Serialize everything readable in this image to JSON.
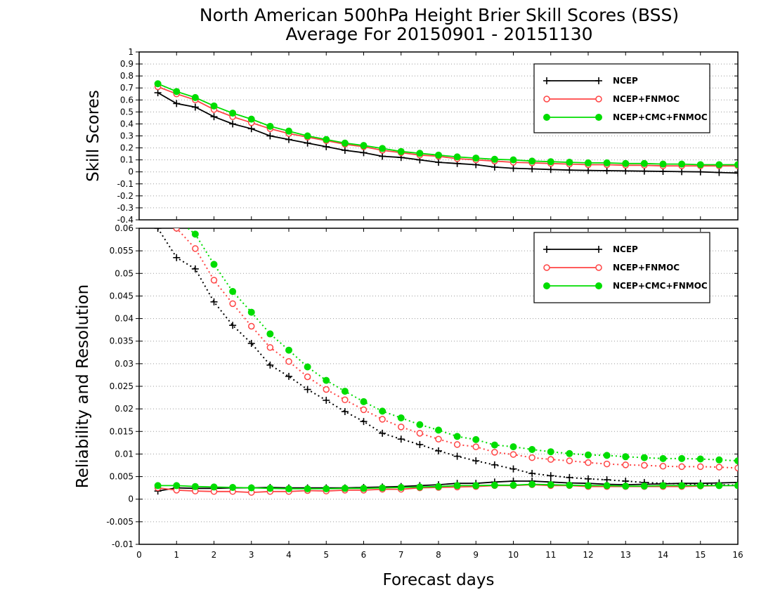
{
  "figure": {
    "title_line1": "North American 500hPa Height Brier Skill Scores (BSS)",
    "title_line2": "Average For 20150901 - 20151130",
    "xlabel": "Forecast days"
  },
  "chart_data": [
    {
      "type": "line",
      "ylabel": "Skill Scores",
      "xlim": [
        0,
        16
      ],
      "ylim": [
        -0.4,
        1
      ],
      "xticks": [
        0,
        1,
        2,
        3,
        4,
        5,
        6,
        7,
        8,
        9,
        10,
        11,
        12,
        13,
        14,
        15,
        16
      ],
      "yticks": [
        -0.4,
        -0.3,
        -0.2,
        -0.1,
        0,
        0.1,
        0.2,
        0.3,
        0.4,
        0.5,
        0.6,
        0.7,
        0.8,
        0.9,
        1
      ],
      "ytick_labels": [
        "-0.4",
        "-0.3",
        "-0.2",
        "-0.1",
        "0",
        "0.1",
        "0.2",
        "0.3",
        "0.4",
        "0.5",
        "0.6",
        "0.7",
        "0.8",
        "0.9",
        "1"
      ],
      "grid": true,
      "legend_position": "top-right",
      "x": [
        0.5,
        1,
        1.5,
        2,
        2.5,
        3,
        3.5,
        4,
        4.5,
        5,
        5.5,
        6,
        6.5,
        7,
        7.5,
        8,
        8.5,
        9,
        9.5,
        10,
        10.5,
        11,
        11.5,
        12,
        12.5,
        13,
        13.5,
        14,
        14.5,
        15,
        15.5,
        16
      ],
      "series": [
        {
          "name": "NCEP",
          "color": "#000000",
          "marker": "plus",
          "values": [
            0.66,
            0.57,
            0.54,
            0.46,
            0.4,
            0.36,
            0.3,
            0.27,
            0.24,
            0.21,
            0.18,
            0.16,
            0.13,
            0.12,
            0.1,
            0.08,
            0.07,
            0.06,
            0.04,
            0.03,
            0.025,
            0.02,
            0.015,
            0.012,
            0.01,
            0.008,
            0.006,
            0.004,
            0.002,
            0.0,
            -0.005,
            -0.01
          ]
        },
        {
          "name": "NCEP+FNMOC",
          "color": "#ff4444",
          "marker": "open-circle",
          "values": [
            0.71,
            0.65,
            0.6,
            0.52,
            0.46,
            0.41,
            0.36,
            0.32,
            0.29,
            0.26,
            0.23,
            0.21,
            0.18,
            0.16,
            0.14,
            0.13,
            0.11,
            0.1,
            0.09,
            0.08,
            0.075,
            0.07,
            0.065,
            0.06,
            0.06,
            0.055,
            0.055,
            0.05,
            0.05,
            0.05,
            0.05,
            0.05
          ]
        },
        {
          "name": "NCEP+CMC+FNMOC",
          "color": "#00dd00",
          "marker": "filled-circle",
          "values": [
            0.735,
            0.67,
            0.62,
            0.55,
            0.49,
            0.44,
            0.38,
            0.34,
            0.3,
            0.27,
            0.24,
            0.22,
            0.195,
            0.17,
            0.155,
            0.14,
            0.125,
            0.115,
            0.105,
            0.1,
            0.09,
            0.085,
            0.08,
            0.075,
            0.075,
            0.07,
            0.07,
            0.065,
            0.065,
            0.06,
            0.06,
            0.06
          ]
        }
      ]
    },
    {
      "type": "line",
      "ylabel": "Reliability and Resolution",
      "xlim": [
        0,
        16
      ],
      "ylim": [
        -0.01,
        0.06
      ],
      "xticks": [
        0,
        1,
        2,
        3,
        4,
        5,
        6,
        7,
        8,
        9,
        10,
        11,
        12,
        13,
        14,
        15,
        16
      ],
      "yticks": [
        -0.01,
        -0.005,
        0,
        0.005,
        0.01,
        0.015,
        0.02,
        0.025,
        0.03,
        0.035,
        0.04,
        0.045,
        0.05,
        0.055,
        0.06
      ],
      "ytick_labels": [
        "-0.01",
        "-0.005",
        "0",
        "0.005",
        "0.01",
        "0.015",
        "0.02",
        "0.025",
        "0.03",
        "0.035",
        "0.04",
        "0.045",
        "0.05",
        "0.055",
        "0.06"
      ],
      "grid": true,
      "legend_position": "top-right",
      "x": [
        0.5,
        1,
        1.5,
        2,
        2.5,
        3,
        3.5,
        4,
        4.5,
        5,
        5.5,
        6,
        6.5,
        7,
        7.5,
        8,
        8.5,
        9,
        9.5,
        10,
        10.5,
        11,
        11.5,
        12,
        12.5,
        13,
        13.5,
        14,
        14.5,
        15,
        15.5,
        16
      ],
      "series": [
        {
          "name": "NCEP",
          "color": "#000000",
          "marker": "plus",
          "line_style": "dotted",
          "values": [
            0.06,
            0.0535,
            0.051,
            0.0437,
            0.0385,
            0.0345,
            0.0297,
            0.0272,
            0.0243,
            0.0219,
            0.0194,
            0.0172,
            0.0146,
            0.0133,
            0.0121,
            0.0107,
            0.0095,
            0.0085,
            0.0076,
            0.0067,
            0.0057,
            0.0052,
            0.0048,
            0.0045,
            0.0043,
            0.004,
            0.0037,
            0.0035,
            0.0034,
            0.0033,
            0.0032,
            0.0031
          ]
        },
        {
          "name": "NCEP",
          "color": "#000000",
          "marker": "plus",
          "line_style": "solid",
          "values": [
            0.0018,
            0.0025,
            0.0024,
            0.0024,
            0.0025,
            0.0025,
            0.0026,
            0.0025,
            0.0025,
            0.0025,
            0.0025,
            0.0026,
            0.0027,
            0.0028,
            0.003,
            0.0032,
            0.0035,
            0.0035,
            0.0038,
            0.004,
            0.004,
            0.0038,
            0.0036,
            0.0035,
            0.0033,
            0.0032,
            0.0033,
            0.0034,
            0.0035,
            0.0035,
            0.0036,
            0.0037
          ]
        },
        {
          "name": "NCEP+FNMOC",
          "color": "#ff4444",
          "marker": "open-circle",
          "line_style": "dotted",
          "values": [
            0.064,
            0.06,
            0.0555,
            0.0485,
            0.0433,
            0.0383,
            0.0336,
            0.0305,
            0.0271,
            0.0243,
            0.022,
            0.0198,
            0.0177,
            0.016,
            0.0146,
            0.0133,
            0.0121,
            0.0116,
            0.0104,
            0.0099,
            0.0092,
            0.0088,
            0.0085,
            0.0081,
            0.0078,
            0.0076,
            0.0075,
            0.0073,
            0.0072,
            0.0072,
            0.0071,
            0.0069
          ]
        },
        {
          "name": "NCEP+FNMOC",
          "color": "#ff4444",
          "marker": "open-circle",
          "line_style": "solid",
          "values": [
            0.0025,
            0.002,
            0.0018,
            0.0017,
            0.0017,
            0.0015,
            0.0017,
            0.0017,
            0.0019,
            0.0018,
            0.002,
            0.002,
            0.0022,
            0.0022,
            0.0025,
            0.0026,
            0.0027,
            0.0028,
            0.003,
            0.003,
            0.0032,
            0.003,
            0.003,
            0.0028,
            0.0028,
            0.0028,
            0.0028,
            0.0028,
            0.0028,
            0.0029,
            0.003,
            0.003
          ]
        },
        {
          "name": "NCEP+CMC+FNMOC",
          "color": "#00dd00",
          "marker": "filled-circle",
          "line_style": "dotted",
          "values": [
            0.065,
            0.062,
            0.0587,
            0.052,
            0.046,
            0.0414,
            0.0366,
            0.033,
            0.0293,
            0.0263,
            0.0239,
            0.0216,
            0.0195,
            0.018,
            0.0165,
            0.0153,
            0.0139,
            0.0132,
            0.012,
            0.0116,
            0.011,
            0.0105,
            0.0101,
            0.0098,
            0.0097,
            0.0094,
            0.0092,
            0.009,
            0.009,
            0.0089,
            0.0087,
            0.0085
          ]
        },
        {
          "name": "NCEP+CMC+FNMOC",
          "color": "#00dd00",
          "marker": "filled-circle",
          "line_style": "solid",
          "values": [
            0.003,
            0.003,
            0.0028,
            0.0027,
            0.0026,
            0.0025,
            0.0024,
            0.0023,
            0.0023,
            0.0023,
            0.0024,
            0.0024,
            0.0025,
            0.0026,
            0.0027,
            0.0028,
            0.003,
            0.003,
            0.0031,
            0.0031,
            0.0033,
            0.0032,
            0.0031,
            0.003,
            0.003,
            0.0029,
            0.0029,
            0.003,
            0.003,
            0.003,
            0.003,
            0.003
          ]
        }
      ]
    }
  ]
}
